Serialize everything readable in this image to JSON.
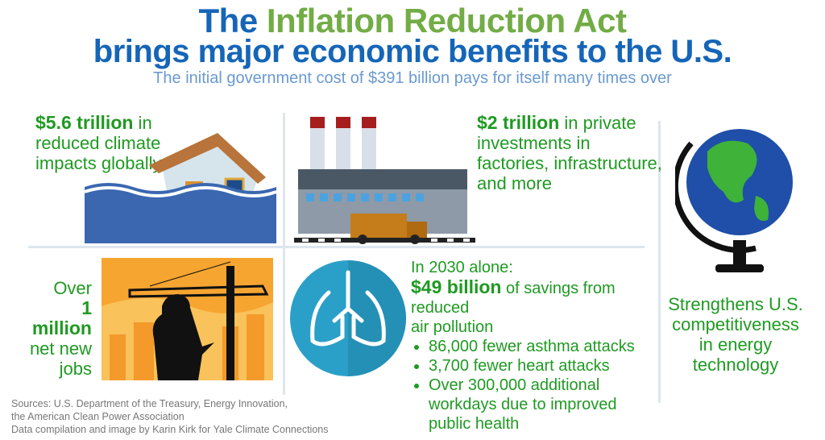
{
  "header": {
    "title_part1": "The ",
    "title_part2": "Inflation Reduction Act",
    "title_line2": "brings major economic benefits to the U.S.",
    "subtitle": "The initial government cost of $391 billion pays for itself many times over"
  },
  "climate": {
    "bold": "$5.6 trillion",
    "rest1": " in",
    "line2": "reduced climate",
    "line3": "impacts globally"
  },
  "investment": {
    "bold": "$2 trillion",
    "rest1": " in private",
    "line2": "investments in",
    "line3": "factories, infrastructure,",
    "line4": "and more"
  },
  "jobs": {
    "line1": "Over",
    "bold": "1 million",
    "line3": "net new",
    "line4": "jobs"
  },
  "health": {
    "line1": "In 2030 alone:",
    "bold": "$49 billion",
    "rest2": " of savings from reduced",
    "line3": "air pollution",
    "bullets": [
      "86,000 fewer asthma attacks",
      "3,700 fewer heart attacks",
      "Over 300,000 additional workdays due to improved public health"
    ]
  },
  "competitiveness": {
    "text": "Strengthens U.S. competitiveness in energy technology"
  },
  "sources": {
    "line1": "Sources: U.S. Department of the Treasury, Energy Innovation,",
    "line2": "the American Clean Power Association",
    "line3": "Data compilation and image by Karin Kirk for Yale Climate Connections"
  },
  "colors": {
    "blue": "#1565b8",
    "green": "#72ac46",
    "text_green": "#1f9a22",
    "subtitle": "#6a9ad0"
  }
}
